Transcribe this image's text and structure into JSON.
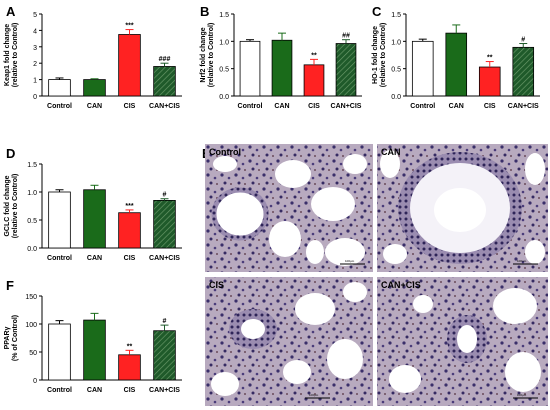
{
  "chart_data": [
    {
      "panel": "A",
      "type": "bar",
      "categories": [
        "Control",
        "CAN",
        "CIS",
        "CAN+CIS"
      ],
      "values": [
        1.0,
        1.0,
        3.75,
        1.8
      ],
      "errors": [
        0.1,
        0.05,
        0.3,
        0.2
      ],
      "significance": [
        "",
        "",
        "***",
        "###"
      ],
      "ylabel": "Keap1 fold change\n(relative to Control)",
      "ylim": [
        0,
        5
      ],
      "yticks": [
        0,
        1,
        2,
        3,
        4,
        5
      ]
    },
    {
      "panel": "B",
      "type": "bar",
      "categories": [
        "Control",
        "CAN",
        "CIS",
        "CAN+CIS"
      ],
      "values": [
        1.0,
        1.02,
        0.57,
        0.96
      ],
      "errors": [
        0.03,
        0.13,
        0.1,
        0.07
      ],
      "significance": [
        "",
        "",
        "**",
        "##"
      ],
      "ylabel": "Nrf2 fold change\n(relative to Control)",
      "ylim": [
        0,
        1.5
      ],
      "yticks": [
        0.0,
        0.5,
        1.0,
        1.5
      ]
    },
    {
      "panel": "C",
      "type": "bar",
      "categories": [
        "Control",
        "CAN",
        "CIS",
        "CAN+CIS"
      ],
      "values": [
        1.0,
        1.15,
        0.53,
        0.89
      ],
      "errors": [
        0.04,
        0.15,
        0.1,
        0.07
      ],
      "significance": [
        "",
        "",
        "**",
        "#"
      ],
      "ylabel": "HO-1 fold change\n(relative to Control)",
      "ylim": [
        0,
        1.5
      ],
      "yticks": [
        0.0,
        0.5,
        1.0,
        1.5
      ]
    },
    {
      "panel": "D",
      "type": "bar",
      "categories": [
        "Control",
        "CAN",
        "CIS",
        "CAN+CIS"
      ],
      "values": [
        1.0,
        1.04,
        0.63,
        0.85
      ],
      "errors": [
        0.04,
        0.08,
        0.05,
        0.03
      ],
      "significance": [
        "",
        "",
        "***",
        "#"
      ],
      "ylabel": "GCLC fold change\n(relative to Control)",
      "ylim": [
        0,
        1.5
      ],
      "yticks": [
        0.0,
        0.5,
        1.0,
        1.5
      ]
    },
    {
      "panel": "F",
      "type": "bar",
      "categories": [
        "Control",
        "CAN",
        "CIS",
        "CAN+CIS"
      ],
      "values": [
        100,
        107,
        45,
        88
      ],
      "errors": [
        6,
        12,
        8,
        10
      ],
      "significance": [
        "",
        "",
        "**",
        "#"
      ],
      "ylabel": "PPARγ\n(% of Control)",
      "ylim": [
        0,
        150
      ],
      "yticks": [
        0,
        50,
        100,
        150
      ]
    }
  ],
  "bar_colors": [
    "#ffffff",
    "#1a6b1a",
    "#ff2222",
    "#1f5a2a"
  ],
  "hatched_bar_index": 3,
  "histology": {
    "letter": "E",
    "panels": [
      {
        "label": "Control",
        "scale": "100µm"
      },
      {
        "label": "CAN",
        "scale": "100µm"
      },
      {
        "label": "CIS",
        "scale": "100µm"
      },
      {
        "label": "CAN+CIS",
        "scale": "100µm"
      }
    ]
  }
}
